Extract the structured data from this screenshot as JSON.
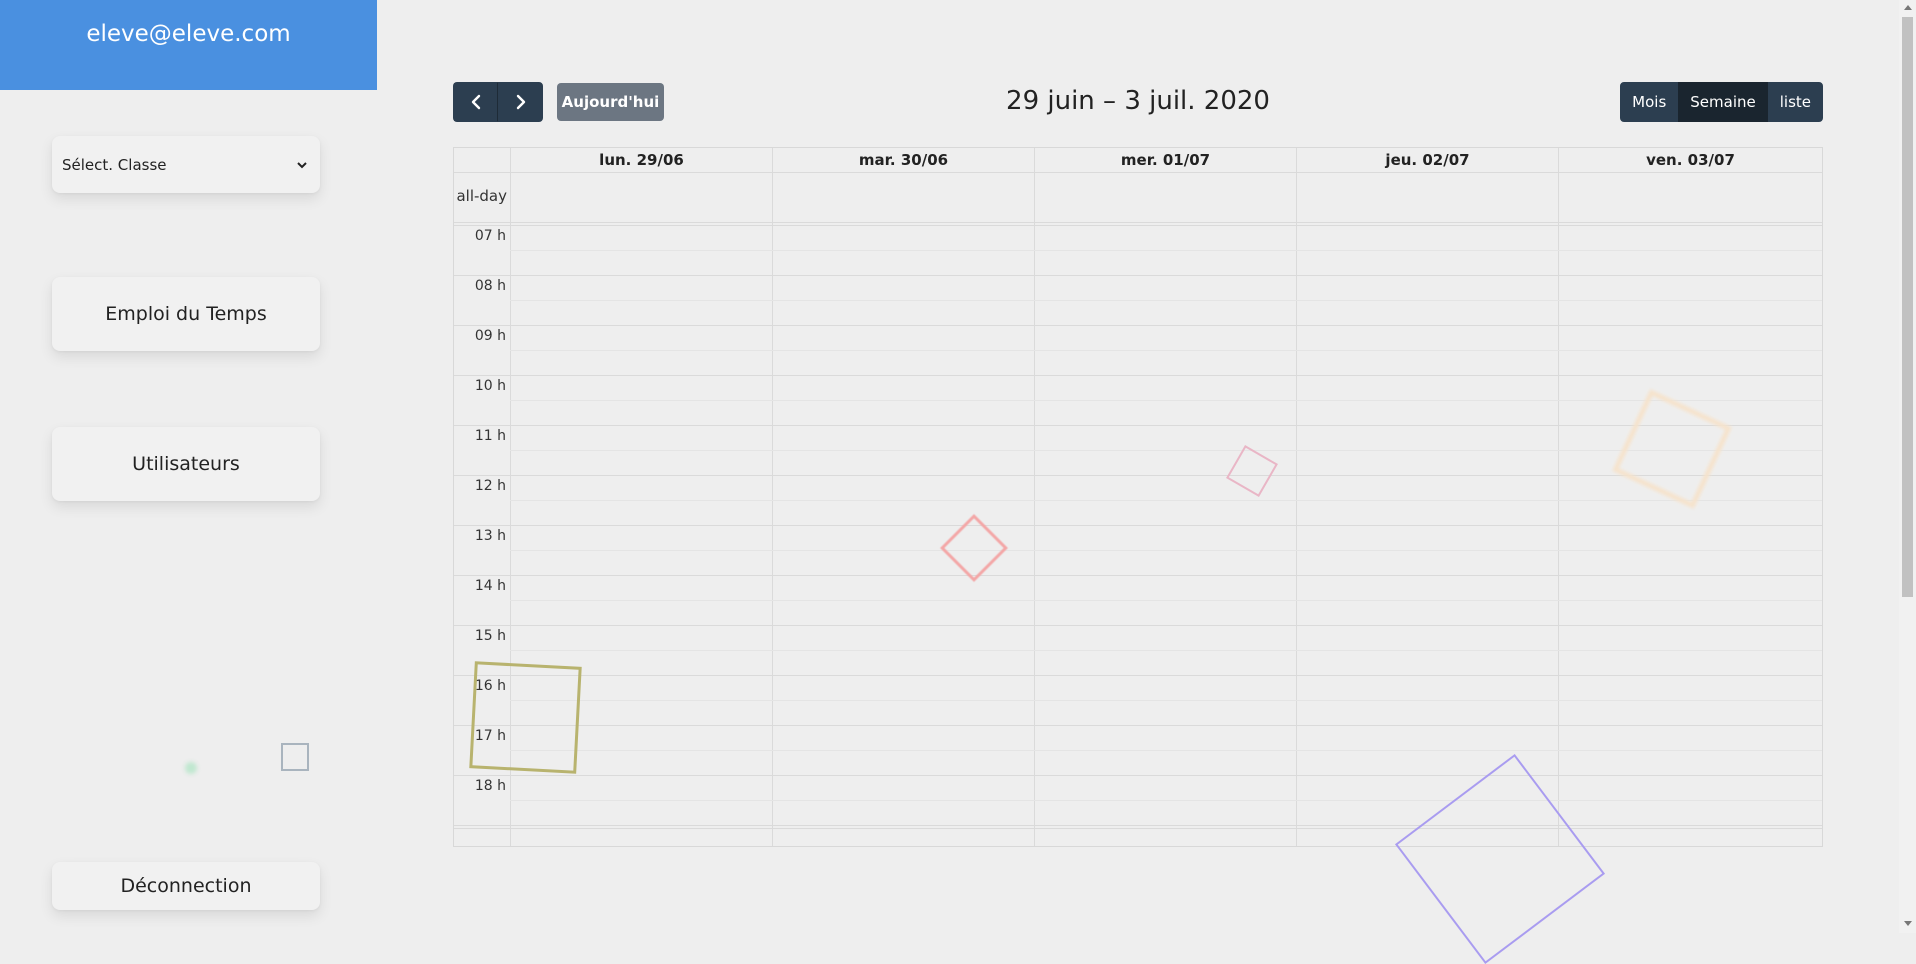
{
  "sidebar": {
    "user_email": "eleve@eleve.com",
    "class_select": {
      "selected": "Sélect. Classe",
      "options": [
        "Sélect. Classe"
      ]
    },
    "menu": {
      "timetable": "Emploi du Temps",
      "users": "Utilisateurs",
      "logout": "Déconnection"
    }
  },
  "calendar": {
    "title": "29 juin – 3 juil. 2020",
    "today_label": "Aujourd'hui",
    "views": {
      "month": "Mois",
      "week": "Semaine",
      "list": "liste",
      "active": "Semaine"
    },
    "all_day_label": "all-day",
    "days": [
      "lun. 29/06",
      "mar. 30/06",
      "mer. 01/07",
      "jeu. 02/07",
      "ven. 03/07"
    ],
    "hours": [
      "07 h",
      "08 h",
      "09 h",
      "10 h",
      "11 h",
      "12 h",
      "13 h",
      "14 h",
      "15 h",
      "16 h",
      "17 h",
      "18 h"
    ]
  },
  "colors": {
    "header_blue": "#4a90e0",
    "button_dark": "#2c3e50",
    "button_active": "#1a252f",
    "today_button": "#6c7682"
  }
}
